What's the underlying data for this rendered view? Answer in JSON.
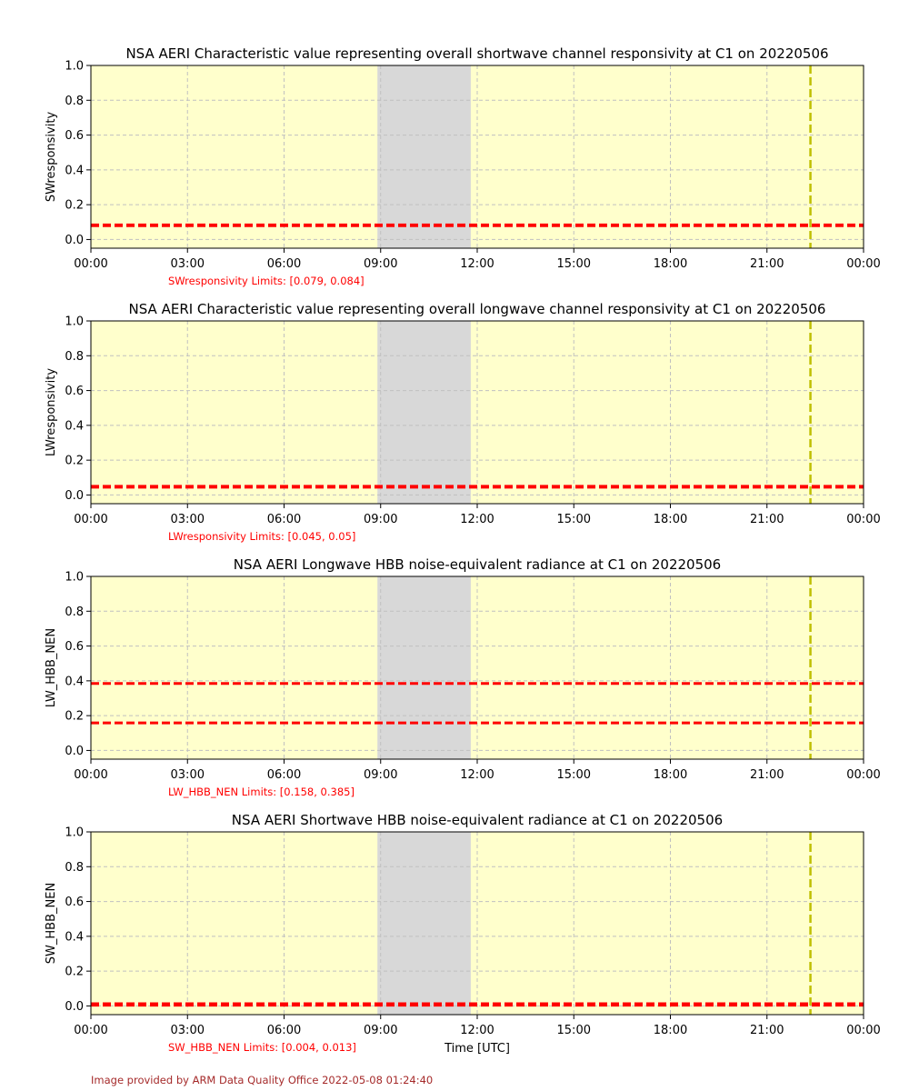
{
  "chart_data": [
    {
      "type": "line",
      "title": "NSA AERI Characteristic value representing overall shortwave channel responsivity at C1 on 20220506",
      "ylabel": "SWresponsivity",
      "xlabel": "",
      "ylim": [
        -0.05,
        1.0
      ],
      "yticks": [
        "0.0",
        "0.2",
        "0.4",
        "0.6",
        "0.8",
        "1.0"
      ],
      "xticks": [
        "00:00",
        "03:00",
        "06:00",
        "09:00",
        "12:00",
        "15:00",
        "18:00",
        "21:00",
        "00:00"
      ],
      "missing_span_hours": [
        8.9,
        11.8
      ],
      "marker_hour": 22.35,
      "limit_lines": [
        0.079,
        0.084
      ],
      "limits_text": "SWresponsivity Limits: [0.079, 0.084]"
    },
    {
      "type": "line",
      "title": "NSA AERI Characteristic value representing overall longwave channel responsivity at C1 on 20220506",
      "ylabel": "LWresponsivity",
      "xlabel": "",
      "ylim": [
        -0.05,
        1.0
      ],
      "yticks": [
        "0.0",
        "0.2",
        "0.4",
        "0.6",
        "0.8",
        "1.0"
      ],
      "xticks": [
        "00:00",
        "03:00",
        "06:00",
        "09:00",
        "12:00",
        "15:00",
        "18:00",
        "21:00",
        "00:00"
      ],
      "missing_span_hours": [
        8.9,
        11.8
      ],
      "marker_hour": 22.35,
      "limit_lines": [
        0.045,
        0.05
      ],
      "limits_text": "LWresponsivity Limits: [0.045, 0.05]"
    },
    {
      "type": "line",
      "title": "NSA AERI Longwave HBB noise-equivalent radiance at C1 on 20220506",
      "ylabel": "LW_HBB_NEN",
      "xlabel": "",
      "ylim": [
        -0.05,
        1.0
      ],
      "yticks": [
        "0.0",
        "0.2",
        "0.4",
        "0.6",
        "0.8",
        "1.0"
      ],
      "xticks": [
        "00:00",
        "03:00",
        "06:00",
        "09:00",
        "12:00",
        "15:00",
        "18:00",
        "21:00",
        "00:00"
      ],
      "missing_span_hours": [
        8.9,
        11.8
      ],
      "marker_hour": 22.35,
      "limit_lines": [
        0.158,
        0.385
      ],
      "limits_text": "LW_HBB_NEN Limits: [0.158, 0.385]"
    },
    {
      "type": "line",
      "title": "NSA AERI Shortwave HBB noise-equivalent radiance at C1 on 20220506",
      "ylabel": "SW_HBB_NEN",
      "xlabel": "Time [UTC]",
      "ylim": [
        -0.05,
        1.0
      ],
      "yticks": [
        "0.0",
        "0.2",
        "0.4",
        "0.6",
        "0.8",
        "1.0"
      ],
      "xticks": [
        "00:00",
        "03:00",
        "06:00",
        "09:00",
        "12:00",
        "15:00",
        "18:00",
        "21:00",
        "00:00"
      ],
      "missing_span_hours": [
        8.9,
        11.8
      ],
      "marker_hour": 22.35,
      "limit_lines": [
        0.004,
        0.013
      ],
      "limits_text": "SW_HBB_NEN Limits: [0.004, 0.013]"
    }
  ],
  "colors": {
    "background_panel": "#ffffcc",
    "missing_span": "#d8d8d8",
    "limit_line": "#ff0000",
    "marker_line": "#bfbf00",
    "grid": "#c0c0c0",
    "limits_text": "#ff0000",
    "footer_text": "#a52a2a"
  },
  "footer": "Image provided by ARM Data Quality Office 2022-05-08 01:24:40"
}
